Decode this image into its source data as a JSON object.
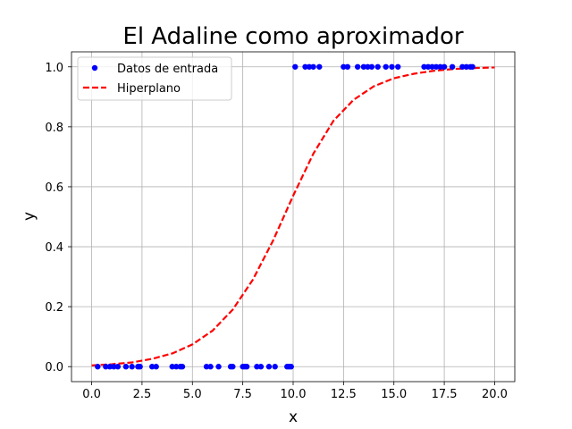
{
  "chart_data": {
    "type": "scatter",
    "title": "El Adaline como aproximador",
    "xlabel": "x",
    "ylabel": "y",
    "xlim": [
      -1.0,
      21.0
    ],
    "ylim": [
      -0.05,
      1.05
    ],
    "xticks": [
      0.0,
      2.5,
      5.0,
      7.5,
      10.0,
      12.5,
      15.0,
      17.5,
      20.0
    ],
    "xtick_labels": [
      "0.0",
      "2.5",
      "5.0",
      "7.5",
      "10.0",
      "12.5",
      "15.0",
      "17.5",
      "20.0"
    ],
    "yticks": [
      0.0,
      0.2,
      0.4,
      0.6,
      0.8,
      1.0
    ],
    "ytick_labels": [
      "0.0",
      "0.2",
      "0.4",
      "0.6",
      "0.8",
      "1.0"
    ],
    "grid": true,
    "legend_position": "top-left",
    "series": [
      {
        "name": "Datos de entrada",
        "kind": "scatter",
        "color": "#0000ff",
        "points": [
          [
            0.3,
            0
          ],
          [
            0.7,
            0
          ],
          [
            0.9,
            0
          ],
          [
            1.1,
            0
          ],
          [
            1.3,
            0
          ],
          [
            1.7,
            0
          ],
          [
            2.0,
            0
          ],
          [
            2.3,
            0
          ],
          [
            2.4,
            0
          ],
          [
            3.0,
            0
          ],
          [
            3.2,
            0
          ],
          [
            4.0,
            0
          ],
          [
            4.2,
            0
          ],
          [
            4.4,
            0
          ],
          [
            4.5,
            0
          ],
          [
            5.7,
            0
          ],
          [
            5.9,
            0
          ],
          [
            6.3,
            0
          ],
          [
            6.9,
            0
          ],
          [
            7.0,
            0
          ],
          [
            7.5,
            0
          ],
          [
            7.6,
            0
          ],
          [
            7.7,
            0
          ],
          [
            8.2,
            0
          ],
          [
            8.4,
            0
          ],
          [
            8.8,
            0
          ],
          [
            9.1,
            0
          ],
          [
            9.7,
            0
          ],
          [
            9.8,
            0
          ],
          [
            9.9,
            0
          ],
          [
            10.1,
            1
          ],
          [
            10.6,
            1
          ],
          [
            10.8,
            1
          ],
          [
            11.0,
            1
          ],
          [
            11.3,
            1
          ],
          [
            12.5,
            1
          ],
          [
            12.7,
            1
          ],
          [
            13.2,
            1
          ],
          [
            13.5,
            1
          ],
          [
            13.7,
            1
          ],
          [
            13.9,
            1
          ],
          [
            14.2,
            1
          ],
          [
            14.6,
            1
          ],
          [
            14.9,
            1
          ],
          [
            15.2,
            1
          ],
          [
            16.5,
            1
          ],
          [
            16.7,
            1
          ],
          [
            16.9,
            1
          ],
          [
            17.1,
            1
          ],
          [
            17.3,
            1
          ],
          [
            17.5,
            1
          ],
          [
            17.9,
            1
          ],
          [
            18.4,
            1
          ],
          [
            18.6,
            1
          ],
          [
            18.8,
            1
          ],
          [
            18.9,
            1
          ]
        ]
      },
      {
        "name": "Hiperplano",
        "kind": "line",
        "color": "#ff0000",
        "linestyle": "dashed",
        "x": [
          0,
          1,
          2,
          3,
          4,
          5,
          6,
          7,
          8,
          9,
          10,
          11,
          12,
          13,
          14,
          15,
          16,
          17,
          18,
          19,
          20
        ],
        "y": [
          0.004,
          0.008,
          0.014,
          0.026,
          0.044,
          0.074,
          0.12,
          0.19,
          0.29,
          0.42,
          0.57,
          0.71,
          0.82,
          0.89,
          0.935,
          0.962,
          0.977,
          0.987,
          0.993,
          0.996,
          0.998
        ]
      }
    ]
  }
}
